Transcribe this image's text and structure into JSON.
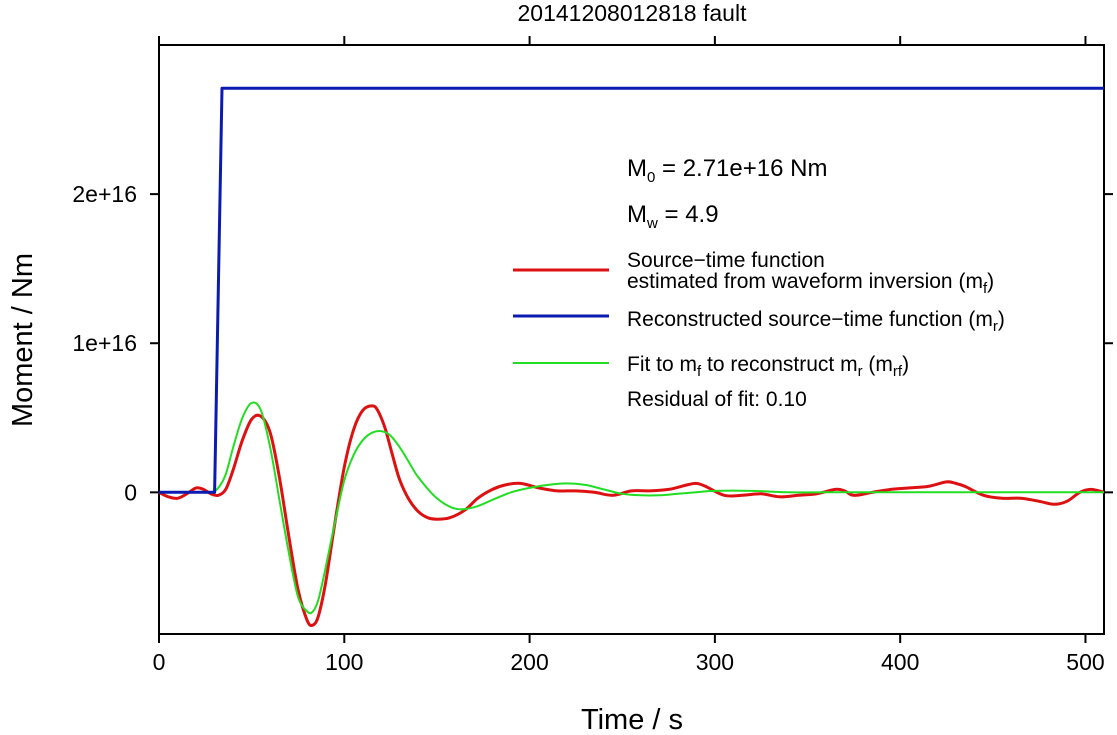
{
  "chart_data": {
    "type": "line",
    "title": "20141208012818 fault",
    "xlabel": "Time / s",
    "ylabel": "Moment / Nm",
    "xlim": [
      0,
      510
    ],
    "ylim": [
      -9500000000000000.0,
      3e+16
    ],
    "x_ticks": [
      0,
      100,
      200,
      300,
      400,
      500
    ],
    "x_tick_labels": [
      "0",
      "100",
      "200",
      "300",
      "400",
      "500"
    ],
    "y_ticks": [
      0,
      1e+16,
      2e+16
    ],
    "y_tick_labels": [
      "0",
      "1e+16",
      "2e+16"
    ],
    "grid": false,
    "legend_position": "right",
    "annotations": {
      "m0_main": "M",
      "m0_sub": "0",
      "m0_value": " = 2.71e+16 Nm",
      "mw_main": "M",
      "mw_sub": "w",
      "mw_value": " = 4.9",
      "residual": "Residual of fit: 0.10"
    },
    "legend": [
      {
        "key": "mf",
        "color": "#dd1111",
        "lines": [
          [
            {
              "t": "Source−time function"
            }
          ],
          [
            {
              "t": "estimated from waveform inversion (m"
            },
            {
              "t": "f",
              "sub": true
            },
            {
              "t": ")"
            }
          ]
        ]
      },
      {
        "key": "mr",
        "color": "#0b1bb0",
        "lines": [
          [
            {
              "t": "Reconstructed source−time function (m"
            },
            {
              "t": "r",
              "sub": true
            },
            {
              "t": ")"
            }
          ]
        ]
      },
      {
        "key": "mrf",
        "color": "#22dd22",
        "lines": [
          [
            {
              "t": "Fit to m"
            },
            {
              "t": "f",
              "sub": true
            },
            {
              "t": " to reconstruct m"
            },
            {
              "t": "r",
              "sub": true
            },
            {
              "t": " (m"
            },
            {
              "t": "rf",
              "sub": true
            },
            {
              "t": ")"
            }
          ]
        ]
      }
    ],
    "series": [
      {
        "key": "mf",
        "color": "#dd1111",
        "width": 3,
        "x": [
          0,
          5,
          10,
          15,
          20,
          24,
          28,
          32,
          36,
          40,
          45,
          50,
          55,
          60,
          65,
          70,
          75,
          80,
          83,
          86,
          90,
          95,
          100,
          105,
          110,
          115,
          118,
          122,
          126,
          130,
          135,
          140,
          145,
          150,
          157,
          165,
          172,
          180,
          187,
          195,
          205,
          215,
          225,
          235,
          245,
          255,
          265,
          275,
          285,
          290,
          295,
          305,
          315,
          325,
          335,
          345,
          355,
          365,
          370,
          375,
          385,
          395,
          405,
          415,
          425,
          430,
          435,
          445,
          455,
          465,
          475,
          483,
          490,
          497,
          503,
          510
        ],
        "y": [
          0,
          -300000000000000.0,
          -400000000000000.0,
          -100000000000000.0,
          300000000000000.0,
          200000000000000.0,
          -100000000000000.0,
          -200000000000000.0,
          200000000000000.0,
          1500000000000000.0,
          3500000000000000.0,
          4900000000000000.0,
          5100000000000000.0,
          4000000000000000.0,
          1000000000000000.0,
          -2900000000000000.0,
          -6500000000000000.0,
          -8600000000000000.0,
          -8900000000000000.0,
          -8300000000000000.0,
          -6000000000000000.0,
          -2000000000000000.0,
          1700000000000000.0,
          4200000000000000.0,
          5500000000000000.0,
          5800000000000000.0,
          5500000000000000.0,
          4300000000000000.0,
          2500000000000000.0,
          800000000000000.0,
          -500000000000000.0,
          -1300000000000000.0,
          -1700000000000000.0,
          -1800000000000000.0,
          -1700000000000000.0,
          -1200000000000000.0,
          -400000000000000.0,
          200000000000000.0,
          500000000000000.0,
          600000000000000.0,
          300000000000000.0,
          100000000000000.0,
          100000000000000.0,
          0,
          -200000000000000.0,
          100000000000000.0,
          100000000000000.0,
          200000000000000.0,
          500000000000000.0,
          600000000000000.0,
          400000000000000.0,
          -200000000000000.0,
          -200000000000000.0,
          -100000000000000.0,
          -300000000000000.0,
          -200000000000000.0,
          -100000000000000.0,
          200000000000000.0,
          100000000000000.0,
          -200000000000000.0,
          0,
          200000000000000.0,
          300000000000000.0,
          400000000000000.0,
          700000000000000.0,
          600000000000000.0,
          400000000000000.0,
          -200000000000000.0,
          -400000000000000.0,
          -400000000000000.0,
          -600000000000000.0,
          -800000000000000.0,
          -600000000000000.0,
          0,
          200000000000000.0,
          0
        ]
      },
      {
        "key": "mrf",
        "color": "#22dd22",
        "width": 2,
        "x": [
          0,
          10,
          20,
          28,
          32,
          36,
          40,
          45,
          50,
          55,
          60,
          65,
          70,
          75,
          80,
          83,
          86,
          90,
          95,
          100,
          105,
          110,
          115,
          120,
          125,
          130,
          135,
          140,
          150,
          160,
          170,
          180,
          190,
          200,
          210,
          220,
          230,
          240,
          250,
          260,
          270,
          280,
          290,
          300,
          320,
          340,
          360,
          380,
          400,
          450,
          510
        ],
        "y": [
          0,
          0,
          0,
          0,
          300000000000000.0,
          1200000000000000.0,
          3000000000000000.0,
          5000000000000000.0,
          6000000000000000.0,
          5500000000000000.0,
          3000000000000000.0,
          -500000000000000.0,
          -4000000000000000.0,
          -7000000000000000.0,
          -8000000000000000.0,
          -8000000000000000.0,
          -7200000000000000.0,
          -5000000000000000.0,
          -2000000000000000.0,
          800000000000000.0,
          2500000000000000.0,
          3500000000000000.0,
          4000000000000000.0,
          4100000000000000.0,
          3800000000000000.0,
          3000000000000000.0,
          2000000000000000.0,
          1000000000000000.0,
          -400000000000000.0,
          -1100000000000000.0,
          -1000000000000000.0,
          -500000000000000.0,
          0,
          300000000000000.0,
          500000000000000.0,
          600000000000000.0,
          500000000000000.0,
          200000000000000.0,
          -100000000000000.0,
          -200000000000000.0,
          -200000000000000.0,
          -100000000000000.0,
          0,
          100000000000000.0,
          100000000000000.0,
          0,
          0,
          0,
          0,
          0,
          0
        ]
      },
      {
        "key": "mr",
        "color": "#0b1bb0",
        "width": 3,
        "x": [
          0,
          29.5,
          30,
          34,
          34.5,
          510
        ],
        "y": [
          0,
          0,
          0,
          2.71e+16,
          2.71e+16,
          2.71e+16
        ]
      }
    ]
  }
}
